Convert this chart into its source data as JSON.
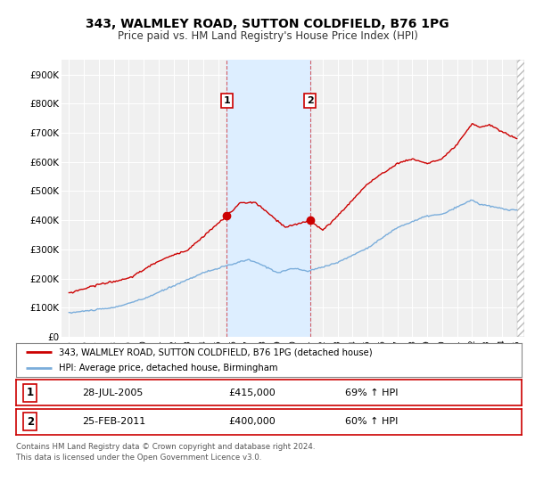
{
  "title": "343, WALMLEY ROAD, SUTTON COLDFIELD, B76 1PG",
  "subtitle": "Price paid vs. HM Land Registry's House Price Index (HPI)",
  "background_color": "#ffffff",
  "plot_bg_color": "#f0f0f0",
  "grid_color": "#ffffff",
  "red_color": "#cc0000",
  "blue_color": "#7aaddb",
  "shade_color": "#ddeeff",
  "sale1": {
    "date_num": 2005.57,
    "price": 415000,
    "label": "1"
  },
  "sale2": {
    "date_num": 2011.15,
    "price": 400000,
    "label": "2"
  },
  "shade_start": 2005.57,
  "shade_end": 2011.15,
  "ylim": [
    0,
    950000
  ],
  "xlim": [
    1994.5,
    2025.5
  ],
  "legend_entries": [
    "343, WALMLEY ROAD, SUTTON COLDFIELD, B76 1PG (detached house)",
    "HPI: Average price, detached house, Birmingham"
  ],
  "table_rows": [
    {
      "num": "1",
      "date": "28-JUL-2005",
      "price": "£415,000",
      "hpi": "69% ↑ HPI"
    },
    {
      "num": "2",
      "date": "25-FEB-2011",
      "price": "£400,000",
      "hpi": "60% ↑ HPI"
    }
  ],
  "footnote": "Contains HM Land Registry data © Crown copyright and database right 2024.\nThis data is licensed under the Open Government Licence v3.0.",
  "yticks": [
    0,
    100000,
    200000,
    300000,
    400000,
    500000,
    600000,
    700000,
    800000,
    900000
  ],
  "ytick_labels": [
    "£0",
    "£100K",
    "£200K",
    "£300K",
    "£400K",
    "£500K",
    "£600K",
    "£700K",
    "£800K",
    "£900K"
  ],
  "hatch_color": "#cccccc"
}
